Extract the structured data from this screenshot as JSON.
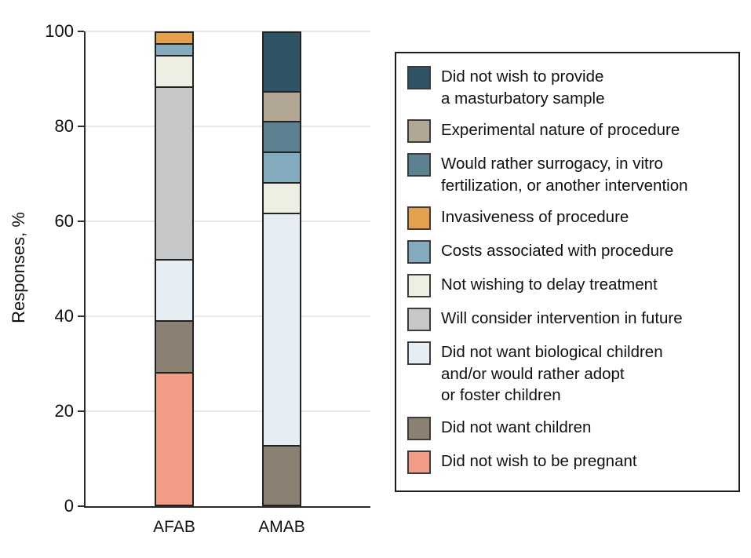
{
  "chart_data": {
    "type": "bar",
    "subtype": "stacked-vertical",
    "title": "",
    "xlabel": "",
    "ylabel": "Responses, %",
    "categories": [
      "AFAB",
      "AMAB"
    ],
    "ylim": [
      0,
      100
    ],
    "yticks": [
      0,
      20,
      40,
      60,
      80,
      100
    ],
    "grid": "horizontal",
    "legend_position": "right",
    "stack_order": "bottom-to-top",
    "series": [
      {
        "name": "Did not wish to be pregnant",
        "color": "#f19c87",
        "values": [
          28.3,
          0
        ]
      },
      {
        "name": "Did not want children",
        "color": "#8a8172",
        "values": [
          10.9,
          12.5
        ]
      },
      {
        "name": "Did not want biological children and/or would rather adopt or foster children",
        "color": "#e6eef3",
        "values": [
          13.0,
          50.0
        ]
      },
      {
        "name": "Will consider intervention in future",
        "color": "#c6c7c9",
        "values": [
          37.0,
          0
        ]
      },
      {
        "name": "Not wishing to delay treatment",
        "color": "#eeeee3",
        "values": [
          6.5,
          6.25
        ]
      },
      {
        "name": "Costs associated with procedure",
        "color": "#84abbd",
        "values": [
          2.2,
          6.25
        ]
      },
      {
        "name": "Invasiveness of procedure",
        "color": "#e4a04c",
        "values": [
          2.2,
          0
        ]
      },
      {
        "name": "Would rather surrogacy, in vitro fertilization, or another intervention",
        "color": "#5c8191",
        "values": [
          0,
          6.25
        ]
      },
      {
        "name": "Experimental nature of procedure",
        "color": "#b2a795",
        "values": [
          0,
          6.25
        ]
      },
      {
        "name": "Did not wish to provide a masturbatory sample",
        "color": "#2e5465",
        "values": [
          0,
          12.5
        ]
      }
    ]
  },
  "axis": {
    "ylabel": "Responses, %",
    "ytick_labels": [
      "0",
      "20",
      "40",
      "60",
      "80",
      "100"
    ],
    "xtick_labels": [
      "AFAB",
      "AMAB"
    ]
  },
  "legend": {
    "items": [
      {
        "label": "Did not wish to provide\na masturbatory sample",
        "color": "#2e5465"
      },
      {
        "label": "Experimental nature of procedure",
        "color": "#b2a795"
      },
      {
        "label": "Would rather surrogacy, in vitro\nfertilization, or another intervention",
        "color": "#5c8191"
      },
      {
        "label": "Invasiveness of procedure",
        "color": "#e4a04c"
      },
      {
        "label": "Costs associated with procedure",
        "color": "#84abbd"
      },
      {
        "label": "Not wishing to delay treatment",
        "color": "#eeeee3"
      },
      {
        "label": "Will consider intervention in future",
        "color": "#c6c7c9"
      },
      {
        "label": "Did not want biological children\nand/or would rather adopt\nor foster children",
        "color": "#e6eef3"
      },
      {
        "label": "Did not want children",
        "color": "#8a8172"
      },
      {
        "label": "Did not wish to be pregnant",
        "color": "#f19c87"
      }
    ]
  },
  "colors": {
    "axis": "#2b2b2b",
    "gridline": "#e8e8e8",
    "segment_border": "#232323",
    "background": "#ffffff"
  }
}
